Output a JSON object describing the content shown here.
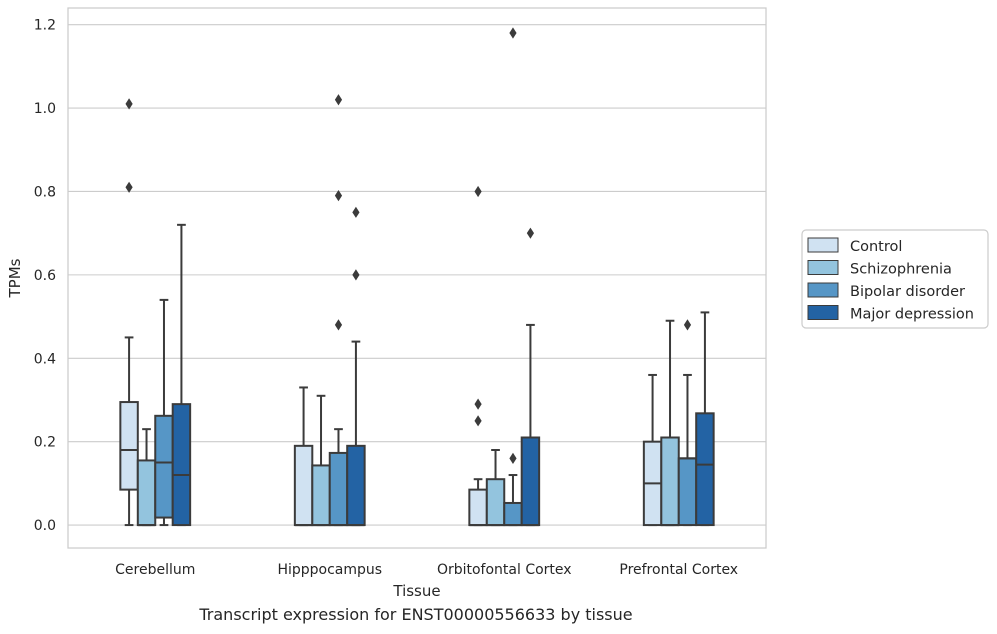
{
  "caption": "Transcript expression for ENST00000556633 by tissue",
  "chart_data": {
    "type": "box",
    "xlabel": "Tissue",
    "ylabel": "TPMs",
    "ylim": [
      -0.055,
      1.24
    ],
    "yticks": [
      0.0,
      0.2,
      0.4,
      0.6,
      0.8,
      1.0,
      1.2
    ],
    "ytick_labels": [
      "0.0",
      "0.2",
      "0.4",
      "0.6",
      "0.8",
      "1.0",
      "1.2"
    ],
    "grid": "horizontal",
    "legend_position": "right",
    "categories": [
      "Cerebellum",
      "Hipppocampus",
      "Orbitofontal Cortex",
      "Prefrontal Cortex"
    ],
    "series": [
      {
        "name": "Control",
        "color": "#d0e2f2",
        "boxes": [
          {
            "whislo": 0.0,
            "q1": 0.085,
            "med": 0.18,
            "q3": 0.295,
            "whishi": 0.45,
            "fliers": [
              1.01,
              0.81
            ]
          },
          {
            "whislo": 0.0,
            "q1": 0.0,
            "med": 0.0,
            "q3": 0.19,
            "whishi": 0.33,
            "fliers": []
          },
          {
            "whislo": 0.0,
            "q1": 0.0,
            "med": 0.0,
            "q3": 0.085,
            "whishi": 0.11,
            "fliers": [
              0.8,
              0.29,
              0.25
            ]
          },
          {
            "whislo": 0.0,
            "q1": 0.0,
            "med": 0.1,
            "q3": 0.2,
            "whishi": 0.36,
            "fliers": []
          }
        ]
      },
      {
        "name": "Schizophrenia",
        "color": "#93c4de",
        "boxes": [
          {
            "whislo": 0.0,
            "q1": 0.0,
            "med": 0.0,
            "q3": 0.155,
            "whishi": 0.23,
            "fliers": []
          },
          {
            "whislo": 0.0,
            "q1": 0.0,
            "med": 0.0,
            "q3": 0.143,
            "whishi": 0.31,
            "fliers": []
          },
          {
            "whislo": 0.0,
            "q1": 0.0,
            "med": 0.0,
            "q3": 0.11,
            "whishi": 0.18,
            "fliers": []
          },
          {
            "whislo": 0.0,
            "q1": 0.0,
            "med": 0.0,
            "q3": 0.21,
            "whishi": 0.49,
            "fliers": []
          }
        ]
      },
      {
        "name": "Bipolar disorder",
        "color": "#5696c6",
        "boxes": [
          {
            "whislo": 0.0,
            "q1": 0.018,
            "med": 0.15,
            "q3": 0.262,
            "whishi": 0.54,
            "fliers": []
          },
          {
            "whislo": 0.0,
            "q1": 0.0,
            "med": 0.0,
            "q3": 0.173,
            "whishi": 0.23,
            "fliers": [
              1.02,
              0.79,
              0.48
            ]
          },
          {
            "whislo": 0.0,
            "q1": 0.0,
            "med": 0.0,
            "q3": 0.053,
            "whishi": 0.12,
            "fliers": [
              1.18,
              0.16
            ]
          },
          {
            "whislo": 0.0,
            "q1": 0.0,
            "med": 0.16,
            "q3": 0.16,
            "whishi": 0.36,
            "fliers": [
              0.48
            ]
          }
        ]
      },
      {
        "name": "Major depression",
        "color": "#2363a4",
        "boxes": [
          {
            "whislo": 0.0,
            "q1": 0.0,
            "med": 0.12,
            "q3": 0.29,
            "whishi": 0.72,
            "fliers": []
          },
          {
            "whislo": 0.0,
            "q1": 0.0,
            "med": 0.0,
            "q3": 0.19,
            "whishi": 0.44,
            "fliers": [
              0.75,
              0.6
            ]
          },
          {
            "whislo": 0.0,
            "q1": 0.0,
            "med": 0.0,
            "q3": 0.21,
            "whishi": 0.48,
            "fliers": [
              0.7
            ]
          },
          {
            "whislo": 0.0,
            "q1": 0.0,
            "med": 0.145,
            "q3": 0.268,
            "whishi": 0.51,
            "fliers": []
          }
        ]
      }
    ]
  }
}
